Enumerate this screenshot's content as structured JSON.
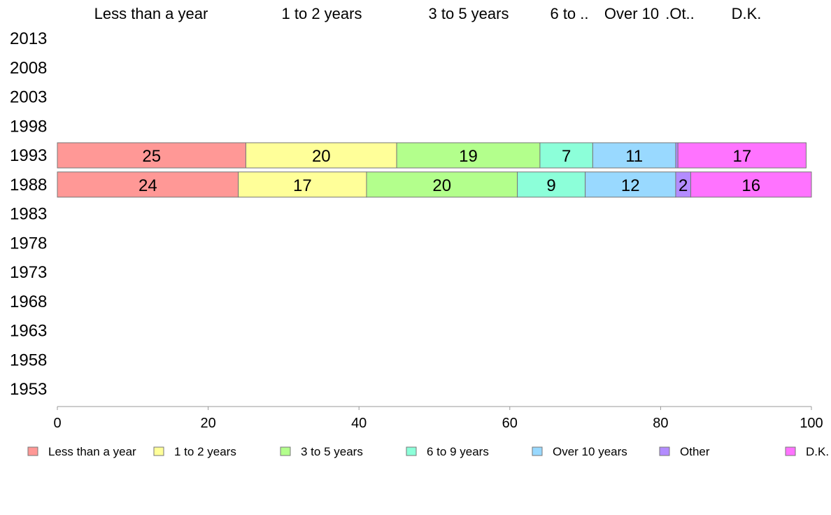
{
  "chart_data": {
    "type": "bar",
    "orientation": "horizontal",
    "stacked": true,
    "title": "",
    "xlabel": "",
    "ylabel": "",
    "xlim": [
      0,
      100
    ],
    "x_ticks": [
      "0",
      "20",
      "40",
      "60",
      "80",
      "100"
    ],
    "categories": [
      "2013",
      "2008",
      "2003",
      "1998",
      "1993",
      "1988",
      "1983",
      "1978",
      "1973",
      "1968",
      "1963",
      "1958",
      "1953"
    ],
    "column_headers": [
      "Less than a year",
      "1 to 2 years",
      "3 to 5 years",
      "6 to ..",
      "Over 10",
      ".Ot..",
      "D.K."
    ],
    "series": [
      {
        "name": "Less than a year",
        "color": "#ff9896",
        "values": [
          null,
          null,
          null,
          null,
          25,
          24,
          null,
          null,
          null,
          null,
          null,
          null,
          null
        ]
      },
      {
        "name": "1 to 2 years",
        "color": "#ffff99",
        "values": [
          null,
          null,
          null,
          null,
          20,
          17,
          null,
          null,
          null,
          null,
          null,
          null,
          null
        ]
      },
      {
        "name": "3 to 5 years",
        "color": "#b3ff8c",
        "values": [
          null,
          null,
          null,
          null,
          19,
          20,
          null,
          null,
          null,
          null,
          null,
          null,
          null
        ]
      },
      {
        "name": "6 to 9 years",
        "color": "#8cffd9",
        "values": [
          null,
          null,
          null,
          null,
          7,
          9,
          null,
          null,
          null,
          null,
          null,
          null,
          null
        ]
      },
      {
        "name": "Over 10 years",
        "color": "#99d9ff",
        "values": [
          null,
          null,
          null,
          null,
          11,
          12,
          null,
          null,
          null,
          null,
          null,
          null,
          null
        ]
      },
      {
        "name": "Other",
        "color": "#b38cff",
        "values": [
          null,
          null,
          null,
          null,
          0.3,
          2,
          null,
          null,
          null,
          null,
          null,
          null,
          null
        ]
      },
      {
        "name": "D.K.",
        "color": "#ff73ff",
        "values": [
          null,
          null,
          null,
          null,
          17,
          16,
          null,
          null,
          null,
          null,
          null,
          null,
          null
        ]
      }
    ],
    "data_labels": {
      "1993": [
        "25",
        "20",
        "19",
        "7",
        "11",
        "",
        "17"
      ],
      "1988": [
        "24",
        "17",
        "20",
        "9",
        "12",
        "2",
        "16"
      ]
    },
    "legend": "bottom",
    "grid": false
  }
}
